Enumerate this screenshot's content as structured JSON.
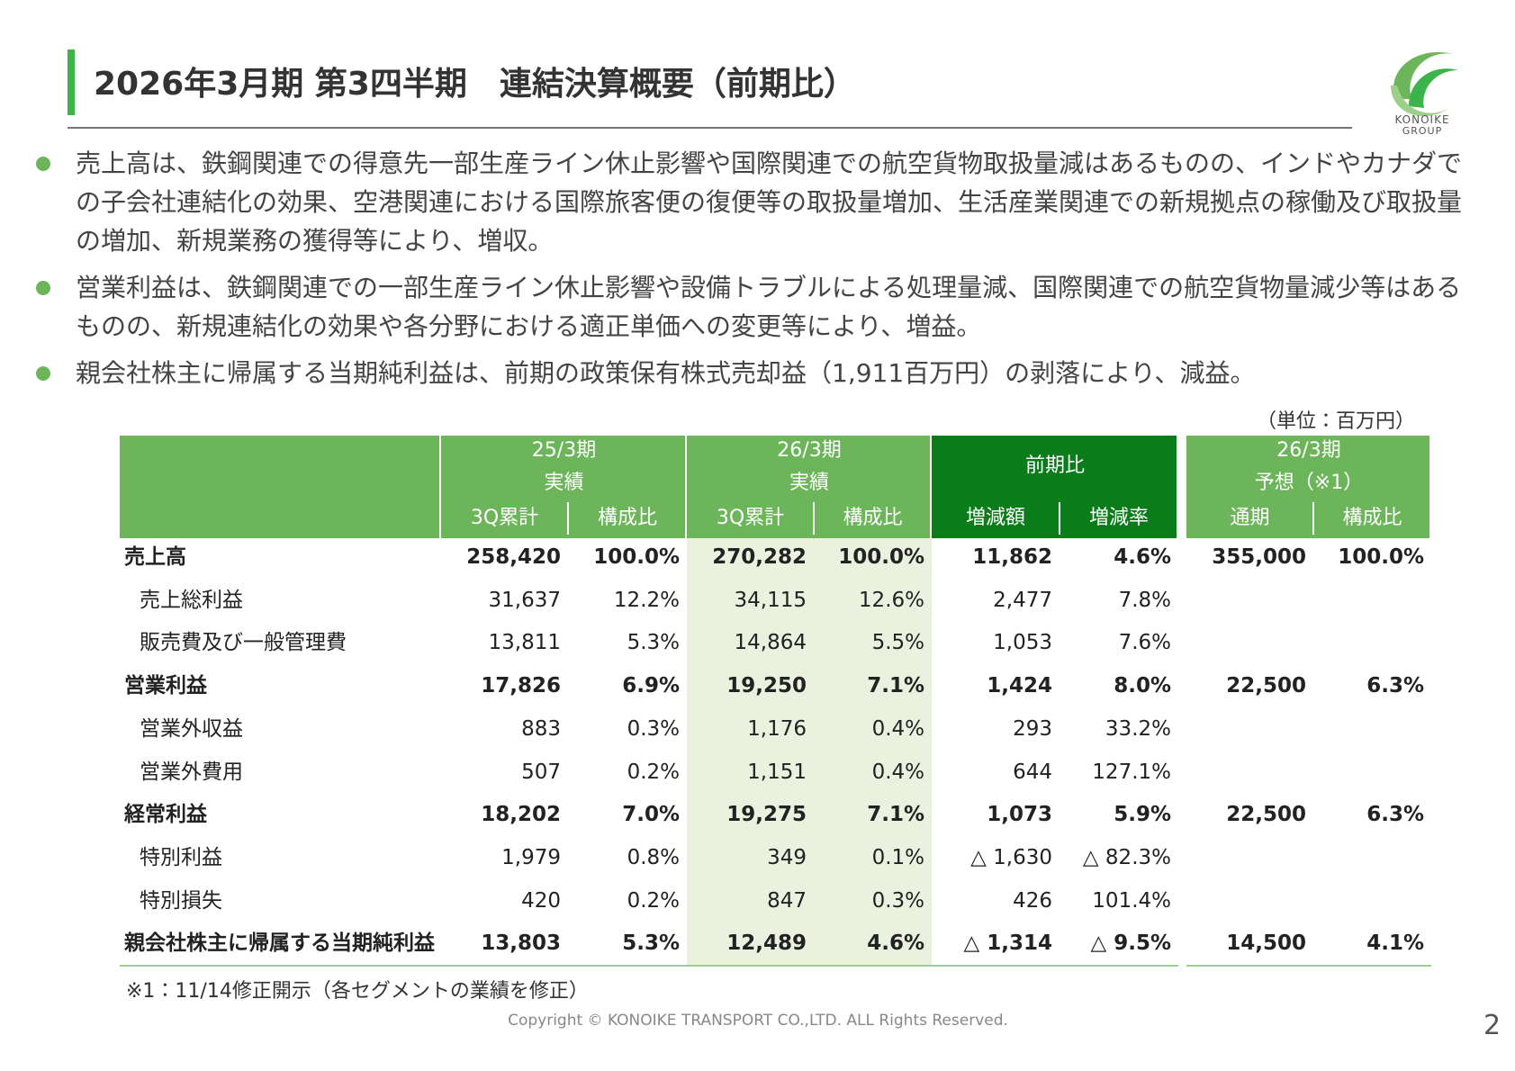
{
  "header": {
    "title": "2026年3月期 第3四半期　連結決算概要（前期比）"
  },
  "logo": {
    "name": "KONOIKE",
    "group": "GROUP"
  },
  "bullets": [
    "売上高は、鉄鋼関連での得意先一部生産ライン休止影響や国際関連での航空貨物取扱量減はあるものの、インドやカナダでの子会社連結化の効果、空港関連における国際旅客便の復便等の取扱量増加、生活産業関連での新規拠点の稼働及び取扱量の増加、新規業務の獲得等により、増収。",
    "営業利益は、鉄鋼関連での一部生産ライン休止影響や設備トラブルによる処理量減、国際関連での航空貨物量減少等はあるものの、新規連結化の効果や各分野における適正単価への変更等により、増益。",
    "親会社株主に帰属する当期純利益は、前期の政策保有株式売却益（1,911百万円）の剥落により、減益。"
  ],
  "table": {
    "unit": "（単位：百万円）",
    "groups": [
      {
        "lines": [
          "25/3期",
          "実績"
        ]
      },
      {
        "lines": [
          "26/3期",
          "実績"
        ]
      },
      {
        "lines": [
          "前期比"
        ]
      },
      {
        "lines": [
          "26/3期",
          "予想（※1）"
        ]
      }
    ],
    "subheaders": [
      "3Q累計",
      "構成比",
      "3Q累計",
      "構成比",
      "増減額",
      "増減率",
      "通期",
      "構成比"
    ],
    "rows": [
      {
        "label": "売上高",
        "bold": true,
        "cells": [
          "258,420",
          "100.0%",
          "270,282",
          "100.0%",
          "11,862",
          "4.6%",
          "355,000",
          "100.0%"
        ]
      },
      {
        "label": "売上総利益",
        "bold": false,
        "cells": [
          "31,637",
          "12.2%",
          "34,115",
          "12.6%",
          "2,477",
          "7.8%",
          null,
          null
        ]
      },
      {
        "label": "販売費及び一般管理費",
        "bold": false,
        "cells": [
          "13,811",
          "5.3%",
          "14,864",
          "5.5%",
          "1,053",
          "7.6%",
          null,
          null
        ]
      },
      {
        "label": "営業利益",
        "bold": true,
        "cells": [
          "17,826",
          "6.9%",
          "19,250",
          "7.1%",
          "1,424",
          "8.0%",
          "22,500",
          "6.3%"
        ]
      },
      {
        "label": "営業外収益",
        "bold": false,
        "cells": [
          "883",
          "0.3%",
          "1,176",
          "0.4%",
          "293",
          "33.2%",
          null,
          null
        ]
      },
      {
        "label": "営業外費用",
        "bold": false,
        "cells": [
          "507",
          "0.2%",
          "1,151",
          "0.4%",
          "644",
          "127.1%",
          null,
          null
        ]
      },
      {
        "label": "経常利益",
        "bold": true,
        "cells": [
          "18,202",
          "7.0%",
          "19,275",
          "7.1%",
          "1,073",
          "5.9%",
          "22,500",
          "6.3%"
        ]
      },
      {
        "label": "特別利益",
        "bold": false,
        "cells": [
          "1,979",
          "0.8%",
          "349",
          "0.1%",
          "△ 1,630",
          "△ 82.3%",
          null,
          null
        ]
      },
      {
        "label": "特別損失",
        "bold": false,
        "cells": [
          "420",
          "0.2%",
          "847",
          "0.3%",
          "426",
          "101.4%",
          null,
          null
        ]
      },
      {
        "label": "親会社株主に帰属する当期純利益",
        "bold": true,
        "cells": [
          "13,803",
          "5.3%",
          "12,489",
          "4.6%",
          "△ 1,314",
          "△ 9.5%",
          "14,500",
          "4.1%"
        ]
      }
    ]
  },
  "footnote": "※1：11/14修正開示（各セグメントの業績を修正）",
  "footer": {
    "copyright": "Copyright © KONOIKE TRANSPORT CO.,LTD.  ALL Rights Reserved.",
    "page": 2
  }
}
